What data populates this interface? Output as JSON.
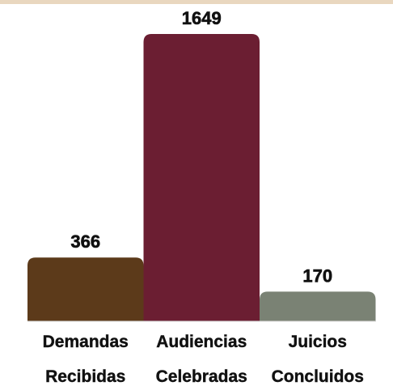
{
  "colors": {
    "top_band": "#e9d7bf",
    "baseline": "#d9d9d9"
  },
  "chart_data": {
    "type": "bar",
    "categories": [
      [
        "Demandas",
        "Recibidas"
      ],
      [
        "Audiencias",
        "Celebradas"
      ],
      [
        "Juicios",
        "Concluidos"
      ]
    ],
    "values": [
      366,
      1649,
      170
    ],
    "value_labels": [
      "366",
      "1649",
      "170"
    ],
    "bar_colors": [
      "#5c3a1a",
      "#6b1e32",
      "#7a8274"
    ],
    "title": "",
    "xlabel": "",
    "ylabel": "",
    "ylim": [
      0,
      1649
    ],
    "grid": false,
    "legend": "none"
  }
}
